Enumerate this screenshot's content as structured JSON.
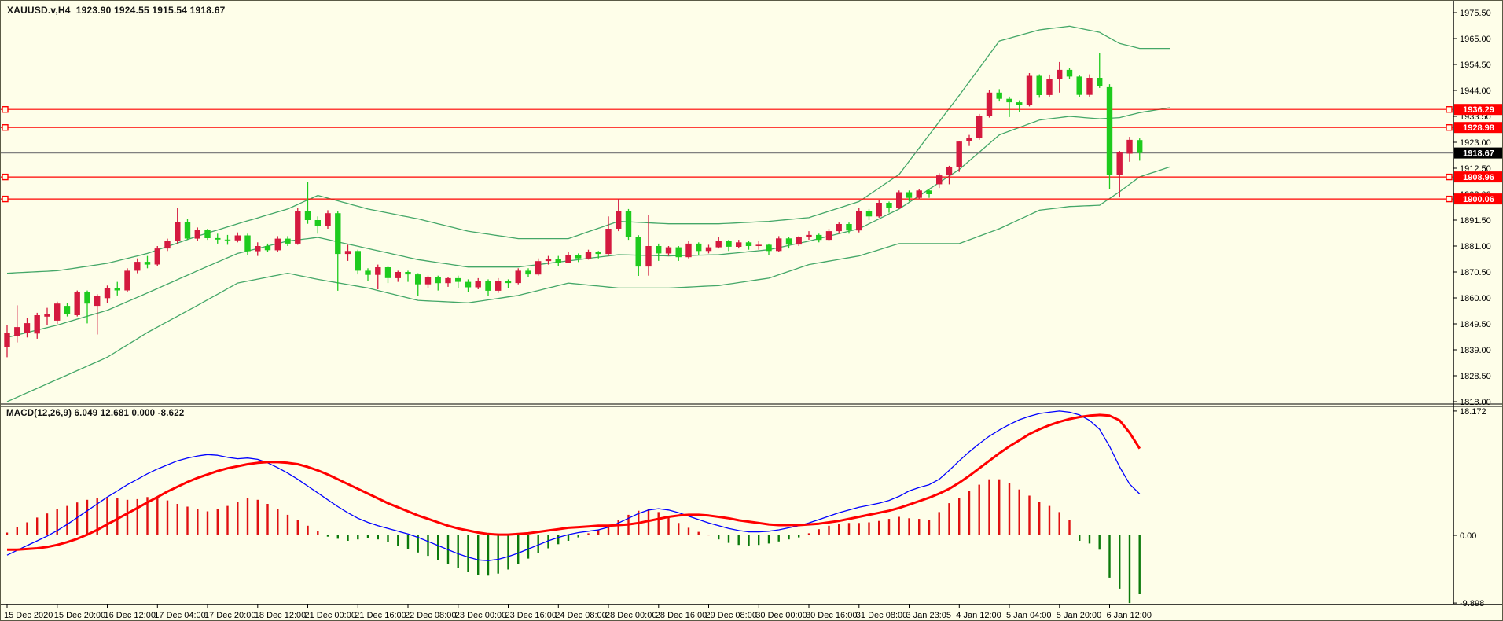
{
  "window": {
    "symbol": "XAUUSD.v",
    "timeframe": "H4",
    "chart_title": "XAUUSD.v,H4  1923.90 1924.55 1915.54 1918.67",
    "ohlc_display": {
      "open": "1923.90",
      "high": "1924.55",
      "low": "1915.54",
      "close": "1918.67"
    }
  },
  "indicator_panel": {
    "macd_label": "MACD(12,26,9) 6.049 12.681 0.000 -8.622"
  },
  "colors": {
    "background": "#fefee9",
    "border": "#000000",
    "bull_candle": "#d41a3f",
    "bear_candle": "#1ecb1e",
    "bollinger_band": "#44a768",
    "horizontal_line": "#ff0000",
    "current_price_line": "#808080",
    "macd_line": "#0000ff",
    "signal_line": "#ff0000",
    "hist_positive": "#e01010",
    "hist_negative": "#0b7a0b",
    "axis_text": "#000000",
    "tag_red_bg": "#ff0000",
    "tag_black_bg": "#000000",
    "tag_text": "#ffffff"
  },
  "price_axis": {
    "labels": [
      "1975.50",
      "1965.00",
      "1954.50",
      "1944.00",
      "1933.50",
      "1923.00",
      "1912.50",
      "1902.00",
      "1891.50",
      "1881.00",
      "1870.50",
      "1860.00",
      "1849.50",
      "1839.00",
      "1828.50",
      "1818.00"
    ],
    "top_price": 1975.5,
    "step": 10.5
  },
  "macd_axis": {
    "labels": [
      "18.172",
      "0.00",
      "-9.898"
    ],
    "values": [
      18.172,
      0.0,
      -9.898
    ]
  },
  "date_axis": {
    "labels": [
      "15 Dec 2020",
      "15 Dec 20:00",
      "16 Dec 12:00",
      "17 Dec 04:00",
      "17 Dec 20:00",
      "18 Dec 12:00",
      "21 Dec 00:00",
      "21 Dec 16:00",
      "22 Dec 08:00",
      "23 Dec 00:00",
      "23 Dec 16:00",
      "24 Dec 08:00",
      "28 Dec 00:00",
      "28 Dec 16:00",
      "29 Dec 08:00",
      "30 Dec 00:00",
      "30 Dec 16:00",
      "31 Dec 08:00",
      "3 Jan 23:05",
      "4 Jan 12:00",
      "5 Jan 04:00",
      "5 Jan 20:00",
      "6 Jan 12:00"
    ],
    "bars_per_tick": 5
  },
  "price_tags": [
    {
      "value": "1936.29",
      "price": 1936.29,
      "bg": "red"
    },
    {
      "value": "1928.98",
      "price": 1928.98,
      "bg": "red"
    },
    {
      "value": "1918.67",
      "price": 1918.67,
      "bg": "black"
    },
    {
      "value": "1908.96",
      "price": 1908.96,
      "bg": "red"
    },
    {
      "value": "1900.06",
      "price": 1900.06,
      "bg": "red"
    }
  ],
  "chart_data": {
    "type": "candlestick_with_bollinger_and_macd",
    "title": "XAUUSD.v,H4",
    "ylim_main": [
      1818.0,
      1975.5
    ],
    "ylim_macd": [
      -9.898,
      18.172
    ],
    "horizontal_lines": [
      1936.29,
      1928.98,
      1908.96,
      1900.06
    ],
    "current_price": 1918.67,
    "candles": [
      [
        1840,
        1849,
        1836,
        1846
      ],
      [
        1844.4,
        1857,
        1842,
        1848.2
      ],
      [
        1846,
        1852,
        1844,
        1849.8
      ],
      [
        1845.6,
        1854,
        1843.5,
        1853
      ],
      [
        1852.4,
        1856,
        1849,
        1853.4
      ],
      [
        1850.8,
        1858.5,
        1849.5,
        1857.7
      ],
      [
        1856.8,
        1858,
        1852.5,
        1853.6
      ],
      [
        1853,
        1863,
        1852.5,
        1862.5
      ],
      [
        1862.5,
        1863,
        1849.7,
        1857.7
      ],
      [
        1856.8,
        1861.5,
        1845.2,
        1860.9
      ],
      [
        1859.9,
        1865,
        1858,
        1864.1
      ],
      [
        1864,
        1866.5,
        1861,
        1863
      ],
      [
        1863,
        1872,
        1862.5,
        1871
      ],
      [
        1871,
        1876,
        1870,
        1874.6
      ],
      [
        1874.6,
        1877,
        1872,
        1873.5
      ],
      [
        1873.5,
        1881,
        1873,
        1880
      ],
      [
        1880,
        1884,
        1879,
        1883
      ],
      [
        1883,
        1896.5,
        1882,
        1890.6
      ],
      [
        1890.6,
        1892,
        1883.5,
        1884
      ],
      [
        1884,
        1888.5,
        1883,
        1887.4
      ],
      [
        1887.4,
        1888,
        1883.5,
        1884.2
      ],
      [
        1884.2,
        1886,
        1882,
        1883.6
      ],
      [
        1883.6,
        1885.5,
        1881.5,
        1883.3
      ],
      [
        1883.3,
        1886.5,
        1882.5,
        1885.3
      ],
      [
        1885.3,
        1886,
        1877.5,
        1878.9
      ],
      [
        1878.9,
        1882.5,
        1877,
        1881
      ],
      [
        1881,
        1882,
        1878.5,
        1879.3
      ],
      [
        1879.3,
        1885,
        1878.5,
        1884
      ],
      [
        1884,
        1885,
        1881,
        1882
      ],
      [
        1882,
        1896.5,
        1881.5,
        1895
      ],
      [
        1895,
        1906.8,
        1890,
        1891.5
      ],
      [
        1891.5,
        1893,
        1886,
        1889
      ],
      [
        1889,
        1895.5,
        1888,
        1894.3
      ],
      [
        1894.3,
        1895,
        1862.9,
        1877.8
      ],
      [
        1877.8,
        1881.5,
        1875,
        1879
      ],
      [
        1879,
        1879.5,
        1869.5,
        1871
      ],
      [
        1871,
        1872,
        1867,
        1869.3
      ],
      [
        1869.3,
        1873.5,
        1863.5,
        1872.4
      ],
      [
        1872.4,
        1873,
        1866,
        1868
      ],
      [
        1868,
        1871,
        1866.5,
        1870.5
      ],
      [
        1870.5,
        1871,
        1866.5,
        1869.5
      ],
      [
        1869.5,
        1870,
        1860.8,
        1865.5
      ],
      [
        1865.5,
        1869,
        1864,
        1868.5
      ],
      [
        1868.5,
        1869,
        1863,
        1866
      ],
      [
        1866,
        1868.5,
        1864.5,
        1868
      ],
      [
        1868,
        1869,
        1864,
        1866.5
      ],
      [
        1866.5,
        1867.5,
        1862.5,
        1864.3
      ],
      [
        1864.3,
        1868,
        1863.5,
        1867
      ],
      [
        1867,
        1867.5,
        1860.9,
        1862.9
      ],
      [
        1862.9,
        1868,
        1862,
        1866.8
      ],
      [
        1866.8,
        1867.5,
        1864,
        1866
      ],
      [
        1866,
        1872,
        1865.5,
        1871
      ],
      [
        1871,
        1872,
        1868.5,
        1869.5
      ],
      [
        1869.5,
        1876,
        1869,
        1874.9
      ],
      [
        1874.9,
        1877,
        1873.5,
        1875.9
      ],
      [
        1875.9,
        1877,
        1873,
        1874.3
      ],
      [
        1874.3,
        1878.5,
        1874,
        1877.5
      ],
      [
        1877.5,
        1878,
        1874.5,
        1876
      ],
      [
        1876,
        1879.5,
        1875.5,
        1878.5
      ],
      [
        1878.5,
        1879,
        1876,
        1877.8
      ],
      [
        1877.8,
        1893,
        1877,
        1888
      ],
      [
        1888,
        1900.2,
        1887,
        1895
      ],
      [
        1895.3,
        1896,
        1883.5,
        1884.8
      ],
      [
        1884.8,
        1885.4,
        1868.9,
        1872.7
      ],
      [
        1872.7,
        1893.6,
        1869,
        1881
      ],
      [
        1881,
        1882,
        1875,
        1878
      ],
      [
        1878,
        1881,
        1877,
        1880.5
      ],
      [
        1880.5,
        1881,
        1875,
        1876.5
      ],
      [
        1876.5,
        1883,
        1876,
        1882
      ],
      [
        1882,
        1882.5,
        1877.5,
        1879
      ],
      [
        1879,
        1881.5,
        1878,
        1880.5
      ],
      [
        1880.5,
        1884.5,
        1880,
        1883
      ],
      [
        1883,
        1883.5,
        1879,
        1880.7
      ],
      [
        1880.7,
        1883.5,
        1880,
        1882.5
      ],
      [
        1882.5,
        1883,
        1879.5,
        1881
      ],
      [
        1881,
        1883,
        1879.5,
        1881.5
      ],
      [
        1881.5,
        1882,
        1877.5,
        1879
      ],
      [
        1879,
        1885,
        1878.5,
        1884.1
      ],
      [
        1884.1,
        1884.5,
        1880,
        1881.6
      ],
      [
        1881.6,
        1885,
        1881,
        1884.5
      ],
      [
        1884.5,
        1887,
        1883.5,
        1885.5
      ],
      [
        1885.5,
        1886,
        1882.5,
        1883.5
      ],
      [
        1883.5,
        1888,
        1883,
        1887
      ],
      [
        1887,
        1890.5,
        1886,
        1889.9
      ],
      [
        1889.9,
        1890.5,
        1886,
        1887.3
      ],
      [
        1887.3,
        1896.5,
        1886.5,
        1895.3
      ],
      [
        1895.3,
        1896,
        1891.5,
        1893
      ],
      [
        1893,
        1899.5,
        1892.5,
        1898.5
      ],
      [
        1898.5,
        1899,
        1894.5,
        1896.5
      ],
      [
        1896.5,
        1903.5,
        1896,
        1902.8
      ],
      [
        1902.8,
        1903.5,
        1899,
        1900.5
      ],
      [
        1900.5,
        1904,
        1900,
        1903.5
      ],
      [
        1903.5,
        1904,
        1900.5,
        1902
      ],
      [
        1906,
        1910.5,
        1904.5,
        1909.6
      ],
      [
        1909.6,
        1913.5,
        1906,
        1913.1
      ],
      [
        1913.1,
        1923.5,
        1911,
        1923.3
      ],
      [
        1923.3,
        1926,
        1921.5,
        1924.9
      ],
      [
        1924.9,
        1934.5,
        1924,
        1933.8
      ],
      [
        1933.8,
        1944,
        1933,
        1943.1
      ],
      [
        1943.1,
        1944.5,
        1939.5,
        1940.6
      ],
      [
        1940.6,
        1941.5,
        1933.2,
        1939.2
      ],
      [
        1939.2,
        1940,
        1935.2,
        1938
      ],
      [
        1938,
        1951,
        1937.5,
        1949.9
      ],
      [
        1949.9,
        1950.5,
        1941,
        1942.1
      ],
      [
        1942.1,
        1950.4,
        1941.5,
        1948.7
      ],
      [
        1948.7,
        1955.5,
        1943.1,
        1952.3
      ],
      [
        1952.3,
        1953.2,
        1948.5,
        1949.6
      ],
      [
        1949.6,
        1950,
        1941.2,
        1942.2
      ],
      [
        1942.2,
        1950.5,
        1941.5,
        1949.1
      ],
      [
        1949.1,
        1959.1,
        1945,
        1945.8
      ],
      [
        1945.3,
        1946.5,
        1903.9,
        1909.7
      ],
      [
        1909.7,
        1919.5,
        1900.7,
        1918.9
      ],
      [
        1918.4,
        1925.2,
        1915.1,
        1924.0
      ],
      [
        1923.9,
        1924.55,
        1915.54,
        1918.67
      ]
    ],
    "bollinger_controls": [
      [
        0,
        1844,
        26
      ],
      [
        5,
        1849,
        22
      ],
      [
        10,
        1855,
        19
      ],
      [
        14,
        1862,
        16
      ],
      [
        19,
        1871,
        14
      ],
      [
        23,
        1878,
        12
      ],
      [
        28,
        1883,
        13
      ],
      [
        31,
        1884.5,
        17
      ],
      [
        36,
        1880,
        16
      ],
      [
        41,
        1875.5,
        16.5
      ],
      [
        46,
        1872.5,
        14.5
      ],
      [
        51,
        1872.5,
        11.5
      ],
      [
        56,
        1875,
        9
      ],
      [
        61,
        1877.5,
        13.5
      ],
      [
        66,
        1877,
        13
      ],
      [
        71,
        1877.5,
        12.5
      ],
      [
        76,
        1879.5,
        11.5
      ],
      [
        80,
        1883,
        9.5
      ],
      [
        85,
        1888,
        11
      ],
      [
        89,
        1896,
        14
      ],
      [
        95,
        1912,
        30
      ],
      [
        99,
        1926,
        38
      ],
      [
        103,
        1932,
        36.5
      ],
      [
        106,
        1933.5,
        36.5
      ],
      [
        109,
        1932.5,
        35
      ],
      [
        111,
        1933,
        30
      ],
      [
        113,
        1935,
        26
      ],
      [
        116,
        1937,
        24
      ]
    ],
    "macd_line": [
      -2.9,
      -2.2,
      -1.5,
      -0.8,
      -0.1,
      0.7,
      1.6,
      2.6,
      3.6,
      4.6,
      5.6,
      6.5,
      7.4,
      8.2,
      9.0,
      9.7,
      10.3,
      10.9,
      11.3,
      11.6,
      11.8,
      11.7,
      11.4,
      11.2,
      11.3,
      11.1,
      10.6,
      9.9,
      9.1,
      8.2,
      7.2,
      6.2,
      5.2,
      4.2,
      3.3,
      2.5,
      1.9,
      1.4,
      1.0,
      0.6,
      0.2,
      -0.3,
      -0.9,
      -1.5,
      -2.1,
      -2.7,
      -3.2,
      -3.6,
      -3.7,
      -3.5,
      -3.1,
      -2.6,
      -2.0,
      -1.4,
      -0.8,
      -0.3,
      0.1,
      0.4,
      0.6,
      0.8,
      1.2,
      1.8,
      2.5,
      3.2,
      3.7,
      3.9,
      3.7,
      3.3,
      2.8,
      2.3,
      1.8,
      1.4,
      1.0,
      0.7,
      0.5,
      0.5,
      0.6,
      0.8,
      1.1,
      1.4,
      1.8,
      2.3,
      2.8,
      3.3,
      3.7,
      4.1,
      4.4,
      4.7,
      5.1,
      5.7,
      6.5,
      7.0,
      7.4,
      8.2,
      9.5,
      10.9,
      12.2,
      13.4,
      14.5,
      15.4,
      16.2,
      16.9,
      17.4,
      17.8,
      18.0,
      18.172,
      18.0,
      17.6,
      16.8,
      15.5,
      13.0,
      10.0,
      7.5,
      6.049
    ],
    "signal_line": [
      -2.1,
      -2.1,
      -2.0,
      -1.9,
      -1.7,
      -1.4,
      -1.0,
      -0.5,
      0.1,
      0.8,
      1.6,
      2.4,
      3.2,
      4.0,
      4.8,
      5.6,
      6.4,
      7.1,
      7.8,
      8.4,
      8.9,
      9.4,
      9.8,
      10.1,
      10.4,
      10.6,
      10.7,
      10.7,
      10.6,
      10.4,
      10.0,
      9.5,
      8.9,
      8.2,
      7.5,
      6.8,
      6.1,
      5.4,
      4.7,
      4.1,
      3.5,
      2.9,
      2.4,
      1.9,
      1.4,
      1.0,
      0.7,
      0.4,
      0.2,
      0.1,
      0.1,
      0.2,
      0.3,
      0.5,
      0.7,
      0.9,
      1.1,
      1.2,
      1.3,
      1.4,
      1.4,
      1.5,
      1.6,
      1.8,
      2.1,
      2.4,
      2.7,
      2.9,
      3.0,
      3.0,
      2.9,
      2.7,
      2.5,
      2.2,
      2.0,
      1.8,
      1.6,
      1.5,
      1.5,
      1.5,
      1.6,
      1.7,
      1.9,
      2.1,
      2.4,
      2.7,
      3.0,
      3.3,
      3.6,
      4.0,
      4.5,
      5.0,
      5.5,
      6.1,
      6.8,
      7.7,
      8.7,
      9.8,
      10.9,
      12.0,
      13.0,
      13.9,
      14.8,
      15.5,
      16.1,
      16.6,
      17.0,
      17.3,
      17.5,
      17.6,
      17.5,
      16.8,
      15.0,
      12.681
    ],
    "histogram": [
      0.4,
      1.2,
      1.9,
      2.6,
      3.2,
      3.8,
      4.3,
      4.8,
      5.2,
      5.5,
      5.6,
      5.4,
      5.2,
      5.3,
      5.6,
      5.5,
      5.1,
      4.6,
      4.2,
      3.8,
      3.5,
      3.8,
      4.3,
      4.9,
      5.4,
      5.2,
      4.6,
      3.8,
      3.0,
      2.2,
      1.4,
      0.6,
      -0.2,
      -0.5,
      -0.8,
      -0.6,
      -0.4,
      -0.6,
      -1.0,
      -1.5,
      -2.0,
      -2.5,
      -3.0,
      -3.6,
      -4.2,
      -4.8,
      -5.4,
      -5.8,
      -5.9,
      -5.6,
      -5.0,
      -4.2,
      -3.4,
      -2.6,
      -1.9,
      -1.3,
      -0.8,
      -0.3,
      0.3,
      0.8,
      1.4,
      2.2,
      3.0,
      3.6,
      3.8,
      3.4,
      2.6,
      1.8,
      1.1,
      0.5,
      0.1,
      -0.6,
      -1.1,
      -1.4,
      -1.5,
      -1.4,
      -1.2,
      -0.9,
      -0.6,
      -0.3,
      0.3,
      0.9,
      1.4,
      1.7,
      1.8,
      1.8,
      1.9,
      2.1,
      2.4,
      2.7,
      2.5,
      2.4,
      2.3,
      3.4,
      4.7,
      5.5,
      6.5,
      7.4,
      8.2,
      8.2,
      7.7,
      6.7,
      5.8,
      4.9,
      4.3,
      3.4,
      2.2,
      -0.8,
      -1.2,
      -2.1,
      -6.2,
      -7.8,
      -9.898,
      -8.622
    ]
  }
}
